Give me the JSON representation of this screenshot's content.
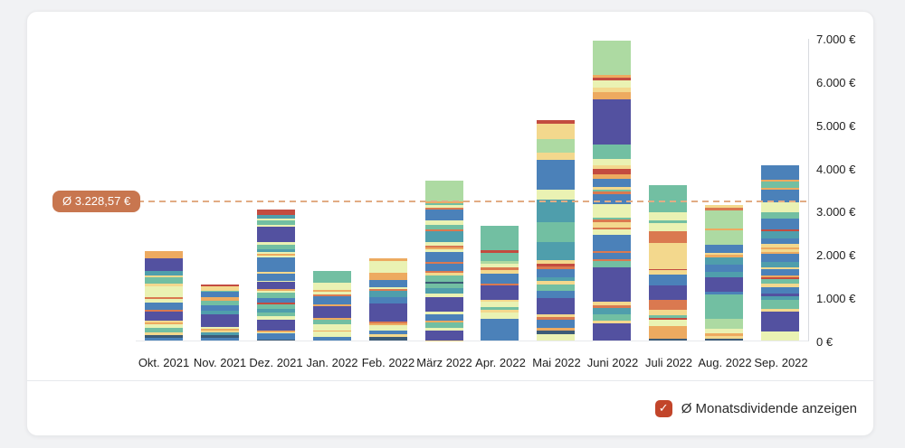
{
  "page": {
    "background": "#F1F2F4"
  },
  "chart_data": {
    "type": "bar",
    "variant": "stacked",
    "title": "",
    "xlabel": "",
    "ylabel": "",
    "grid": false,
    "legend": "none",
    "y_max": 7000,
    "y_ticks": [
      {
        "label": "7.000 €",
        "value": 7000
      },
      {
        "label": "6.000 €",
        "value": 6000
      },
      {
        "label": "5.000 €",
        "value": 5000
      },
      {
        "label": "4.000 €",
        "value": 4000
      },
      {
        "label": "3.000 €",
        "value": 3000
      },
      {
        "label": "2.000 €",
        "value": 2000
      },
      {
        "label": "1.000 €",
        "value": 1000
      },
      {
        "label": "0 €",
        "value": 0
      }
    ],
    "categories": [
      "Okt. 2021",
      "Nov. 2021",
      "Dez. 2021",
      "Jan. 2022",
      "Feb. 2022",
      "März 2022",
      "Apr. 2022",
      "Mai 2022",
      "Juni 2022",
      "Juli 2022",
      "Aug. 2022",
      "Sep. 2022"
    ],
    "average_line": {
      "value": 3228.57,
      "label": "Ø 3.228,57 €",
      "badge_color": "#C8764F",
      "dash_color": "#E2AC84"
    },
    "palette": [
      "#5351A0",
      "#4B81B9",
      "#4F9EAC",
      "#72BFA2",
      "#ADDAA2",
      "#EAF2B3",
      "#F3D88D",
      "#EDAA60",
      "#DA7950",
      "#C34B3F",
      "#3C5B77"
    ],
    "bars": [
      {
        "month": "Okt. 2021",
        "total": 2070,
        "segments": [
          [
            7,
            170
          ],
          [
            0,
            290
          ],
          [
            2,
            105
          ],
          [
            6,
            40
          ],
          [
            3,
            145
          ],
          [
            6,
            60
          ],
          [
            5,
            250
          ],
          [
            8,
            45
          ],
          [
            5,
            85
          ],
          [
            1,
            170
          ],
          [
            8,
            45
          ],
          [
            0,
            210
          ],
          [
            6,
            40
          ],
          [
            7,
            45
          ],
          [
            5,
            85
          ],
          [
            3,
            105
          ],
          [
            6,
            60
          ],
          [
            10,
            60
          ],
          [
            1,
            60
          ]
        ]
      },
      {
        "month": "Nov. 2021",
        "total": 1300,
        "segments": [
          [
            9,
            50
          ],
          [
            6,
            90
          ],
          [
            3,
            40
          ],
          [
            1,
            120
          ],
          [
            7,
            90
          ],
          [
            3,
            100
          ],
          [
            1,
            110
          ],
          [
            2,
            90
          ],
          [
            0,
            290
          ],
          [
            5,
            40
          ],
          [
            7,
            40
          ],
          [
            6,
            60
          ],
          [
            2,
            60
          ],
          [
            10,
            60
          ],
          [
            1,
            60
          ]
        ]
      },
      {
        "month": "Dez. 2021",
        "total": 3030,
        "segments": [
          [
            9,
            130
          ],
          [
            2,
            70
          ],
          [
            5,
            60
          ],
          [
            3,
            90
          ],
          [
            5,
            50
          ],
          [
            0,
            360
          ],
          [
            5,
            60
          ],
          [
            3,
            90
          ],
          [
            2,
            80
          ],
          [
            5,
            40
          ],
          [
            7,
            40
          ],
          [
            5,
            40
          ],
          [
            1,
            340
          ],
          [
            6,
            40
          ],
          [
            1,
            150
          ],
          [
            5,
            40
          ],
          [
            0,
            150
          ],
          [
            7,
            40
          ],
          [
            5,
            50
          ],
          [
            3,
            120
          ],
          [
            1,
            120
          ],
          [
            9,
            40
          ],
          [
            3,
            90
          ],
          [
            2,
            90
          ],
          [
            3,
            80
          ],
          [
            5,
            80
          ],
          [
            0,
            260
          ],
          [
            7,
            30
          ],
          [
            5,
            40
          ],
          [
            1,
            130
          ],
          [
            10,
            30
          ]
        ]
      },
      {
        "month": "Jan. 2022",
        "total": 1600,
        "segments": [
          [
            3,
            260
          ],
          [
            5,
            170
          ],
          [
            7,
            40
          ],
          [
            5,
            60
          ],
          [
            8,
            40
          ],
          [
            1,
            200
          ],
          [
            7,
            40
          ],
          [
            0,
            260
          ],
          [
            7,
            40
          ],
          [
            3,
            120
          ],
          [
            5,
            130
          ],
          [
            7,
            40
          ],
          [
            5,
            120
          ],
          [
            1,
            80
          ]
        ]
      },
      {
        "month": "Feb. 2022",
        "total": 1900,
        "segments": [
          [
            7,
            60
          ],
          [
            5,
            280
          ],
          [
            7,
            160
          ],
          [
            1,
            160
          ],
          [
            5,
            50
          ],
          [
            8,
            40
          ],
          [
            2,
            140
          ],
          [
            1,
            160
          ],
          [
            0,
            260
          ],
          [
            0,
            160
          ],
          [
            8,
            40
          ],
          [
            7,
            40
          ],
          [
            5,
            120
          ],
          [
            1,
            80
          ],
          [
            6,
            60
          ],
          [
            10,
            90
          ]
        ]
      },
      {
        "month": "März 2022",
        "total": 3700,
        "segments": [
          [
            4,
            480
          ],
          [
            7,
            40
          ],
          [
            3,
            50
          ],
          [
            5,
            60
          ],
          [
            8,
            40
          ],
          [
            1,
            260
          ],
          [
            5,
            90
          ],
          [
            3,
            110
          ],
          [
            8,
            40
          ],
          [
            2,
            260
          ],
          [
            5,
            80
          ],
          [
            8,
            40
          ],
          [
            7,
            40
          ],
          [
            5,
            60
          ],
          [
            1,
            240
          ],
          [
            8,
            40
          ],
          [
            1,
            160
          ],
          [
            8,
            40
          ],
          [
            6,
            60
          ],
          [
            3,
            150
          ],
          [
            10,
            40
          ],
          [
            3,
            110
          ],
          [
            2,
            130
          ],
          [
            5,
            80
          ],
          [
            0,
            340
          ],
          [
            5,
            60
          ],
          [
            1,
            140
          ],
          [
            7,
            40
          ],
          [
            3,
            130
          ],
          [
            5,
            60
          ],
          [
            0,
            220
          ],
          [
            6,
            10
          ]
        ]
      },
      {
        "month": "Apr. 2022",
        "total": 2650,
        "segments": [
          [
            3,
            560
          ],
          [
            9,
            70
          ],
          [
            3,
            180
          ],
          [
            4,
            60
          ],
          [
            5,
            90
          ],
          [
            8,
            50
          ],
          [
            6,
            100
          ],
          [
            1,
            220
          ],
          [
            8,
            50
          ],
          [
            0,
            330
          ],
          [
            6,
            50
          ],
          [
            5,
            120
          ],
          [
            3,
            60
          ],
          [
            6,
            60
          ],
          [
            5,
            140
          ],
          [
            1,
            510
          ]
        ]
      },
      {
        "month": "Mai 2022",
        "total": 5100,
        "segments": [
          [
            9,
            90
          ],
          [
            6,
            340
          ],
          [
            4,
            330
          ],
          [
            6,
            160
          ],
          [
            1,
            700
          ],
          [
            5,
            230
          ],
          [
            2,
            520
          ],
          [
            3,
            460
          ],
          [
            2,
            420
          ],
          [
            6,
            70
          ],
          [
            9,
            60
          ],
          [
            8,
            60
          ],
          [
            1,
            200
          ],
          [
            2,
            80
          ],
          [
            6,
            90
          ],
          [
            3,
            130
          ],
          [
            1,
            180
          ],
          [
            0,
            380
          ],
          [
            6,
            60
          ],
          [
            8,
            60
          ],
          [
            1,
            190
          ],
          [
            7,
            60
          ],
          [
            10,
            90
          ],
          [
            5,
            140
          ]
        ]
      },
      {
        "month": "Juni 2022",
        "total": 6940,
        "segments": [
          [
            4,
            560
          ],
          [
            4,
            230
          ],
          [
            7,
            70
          ],
          [
            9,
            70
          ],
          [
            5,
            150
          ],
          [
            6,
            120
          ],
          [
            7,
            160
          ],
          [
            0,
            1050
          ],
          [
            3,
            330
          ],
          [
            5,
            150
          ],
          [
            6,
            90
          ],
          [
            9,
            120
          ],
          [
            7,
            90
          ],
          [
            1,
            200
          ],
          [
            6,
            50
          ],
          [
            3,
            60
          ],
          [
            8,
            50
          ],
          [
            1,
            230
          ],
          [
            5,
            310
          ],
          [
            3,
            60
          ],
          [
            8,
            50
          ],
          [
            6,
            120
          ],
          [
            8,
            50
          ],
          [
            5,
            120
          ],
          [
            1,
            380
          ],
          [
            8,
            50
          ],
          [
            1,
            140
          ],
          [
            8,
            50
          ],
          [
            3,
            130
          ],
          [
            0,
            800
          ],
          [
            6,
            90
          ],
          [
            8,
            50
          ],
          [
            2,
            150
          ],
          [
            3,
            160
          ],
          [
            6,
            60
          ],
          [
            0,
            390
          ]
        ]
      },
      {
        "month": "Juli 2022",
        "total": 3590,
        "segments": [
          [
            3,
            620
          ],
          [
            5,
            190
          ],
          [
            3,
            60
          ],
          [
            5,
            200
          ],
          [
            8,
            260
          ],
          [
            6,
            310
          ],
          [
            6,
            290
          ],
          [
            9,
            40
          ],
          [
            6,
            90
          ],
          [
            1,
            260
          ],
          [
            0,
            330
          ],
          [
            8,
            230
          ],
          [
            6,
            120
          ],
          [
            3,
            60
          ],
          [
            9,
            40
          ],
          [
            5,
            160
          ],
          [
            7,
            280
          ],
          [
            10,
            50
          ]
        ]
      },
      {
        "month": "Aug. 2022",
        "total": 3130,
        "segments": [
          [
            6,
            60
          ],
          [
            8,
            60
          ],
          [
            4,
            420
          ],
          [
            7,
            40
          ],
          [
            4,
            330
          ],
          [
            1,
            190
          ],
          [
            6,
            50
          ],
          [
            7,
            60
          ],
          [
            2,
            160
          ],
          [
            1,
            170
          ],
          [
            2,
            130
          ],
          [
            0,
            330
          ],
          [
            1,
            70
          ],
          [
            3,
            560
          ],
          [
            4,
            220
          ],
          [
            5,
            120
          ],
          [
            7,
            50
          ],
          [
            6,
            60
          ],
          [
            10,
            50
          ]
        ]
      },
      {
        "month": "Sep. 2022",
        "total": 4050,
        "segments": [
          [
            1,
            330
          ],
          [
            7,
            50
          ],
          [
            3,
            140
          ],
          [
            7,
            50
          ],
          [
            1,
            290
          ],
          [
            5,
            230
          ],
          [
            3,
            130
          ],
          [
            1,
            260
          ],
          [
            9,
            50
          ],
          [
            2,
            160
          ],
          [
            1,
            130
          ],
          [
            6,
            70
          ],
          [
            7,
            50
          ],
          [
            6,
            60
          ],
          [
            7,
            50
          ],
          [
            1,
            180
          ],
          [
            2,
            120
          ],
          [
            6,
            40
          ],
          [
            1,
            150
          ],
          [
            7,
            40
          ],
          [
            9,
            40
          ],
          [
            3,
            120
          ],
          [
            6,
            70
          ],
          [
            1,
            150
          ],
          [
            0,
            60
          ],
          [
            2,
            100
          ],
          [
            3,
            110
          ],
          [
            3,
            90
          ],
          [
            6,
            60
          ],
          [
            0,
            470
          ],
          [
            5,
            200
          ]
        ]
      }
    ]
  },
  "footer": {
    "checkbox_checked": true,
    "checkbox_color": "#C2452A",
    "check_glyph": "✓",
    "label": "Ø Monatsdividende anzeigen"
  }
}
